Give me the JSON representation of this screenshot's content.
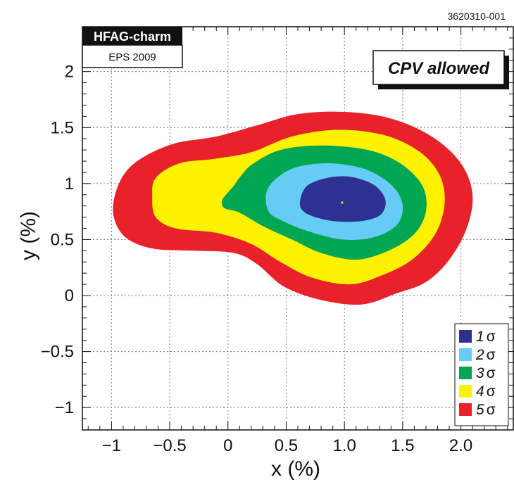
{
  "figure_id": "3620310-001",
  "badge": {
    "title": "HFAG-charm",
    "subtitle": "EPS 2009"
  },
  "annotation": "CPV allowed",
  "chart_data": {
    "type": "contour",
    "xlabel": "x (%)",
    "ylabel": "y (%)",
    "xlim": [
      -1.25,
      2.45
    ],
    "ylim": [
      -1.2,
      2.4
    ],
    "x_ticks": [
      -1,
      -0.5,
      0,
      0.5,
      1.0,
      1.5,
      2.0
    ],
    "x_tick_labels": [
      "−1",
      "−0.5",
      "0",
      "0.5",
      "1.0",
      "1.5",
      "2.0"
    ],
    "y_ticks": [
      -1,
      -0.5,
      0,
      0.5,
      1,
      1.5,
      2
    ],
    "y_tick_labels": [
      "−1",
      "−0.5",
      "0",
      "0.5",
      "1",
      "1.5",
      "2"
    ],
    "grid": true,
    "legend_position": "bottom-right",
    "best_fit": {
      "x": 0.98,
      "y": 0.83
    },
    "contours": [
      {
        "label": "5σ",
        "sigma": "5",
        "color": "#e8212b",
        "points": [
          [
            -0.88,
            1.1
          ],
          [
            -0.72,
            1.24
          ],
          [
            -0.45,
            1.36
          ],
          [
            -0.1,
            1.42
          ],
          [
            0.25,
            1.52
          ],
          [
            0.6,
            1.62
          ],
          [
            1.0,
            1.64
          ],
          [
            1.4,
            1.58
          ],
          [
            1.75,
            1.42
          ],
          [
            2.0,
            1.18
          ],
          [
            2.1,
            0.9
          ],
          [
            2.05,
            0.6
          ],
          [
            1.9,
            0.32
          ],
          [
            1.7,
            0.12
          ],
          [
            1.45,
            0.02
          ],
          [
            1.15,
            -0.08
          ],
          [
            0.8,
            -0.04
          ],
          [
            0.48,
            0.08
          ],
          [
            0.25,
            0.28
          ],
          [
            0.05,
            0.38
          ],
          [
            -0.3,
            0.4
          ],
          [
            -0.65,
            0.42
          ],
          [
            -0.88,
            0.52
          ],
          [
            -0.98,
            0.7
          ],
          [
            -0.97,
            0.9
          ]
        ]
      },
      {
        "label": "4σ",
        "sigma": "4",
        "color": "#fff200",
        "points": [
          [
            -0.62,
            1.05
          ],
          [
            -0.42,
            1.18
          ],
          [
            -0.12,
            1.22
          ],
          [
            0.2,
            1.28
          ],
          [
            0.55,
            1.42
          ],
          [
            0.95,
            1.48
          ],
          [
            1.35,
            1.43
          ],
          [
            1.65,
            1.28
          ],
          [
            1.82,
            1.07
          ],
          [
            1.86,
            0.82
          ],
          [
            1.78,
            0.55
          ],
          [
            1.58,
            0.32
          ],
          [
            1.32,
            0.18
          ],
          [
            1.05,
            0.1
          ],
          [
            0.72,
            0.16
          ],
          [
            0.45,
            0.3
          ],
          [
            0.2,
            0.46
          ],
          [
            -0.1,
            0.56
          ],
          [
            -0.45,
            0.6
          ],
          [
            -0.62,
            0.7
          ],
          [
            -0.65,
            0.88
          ]
        ]
      },
      {
        "label": "3σ",
        "sigma": "3",
        "color": "#00a651",
        "points": [
          [
            0.05,
            0.98
          ],
          [
            0.12,
            1.08
          ],
          [
            0.22,
            1.18
          ],
          [
            0.45,
            1.3
          ],
          [
            0.8,
            1.34
          ],
          [
            1.2,
            1.3
          ],
          [
            1.48,
            1.18
          ],
          [
            1.67,
            0.98
          ],
          [
            1.7,
            0.75
          ],
          [
            1.6,
            0.55
          ],
          [
            1.38,
            0.4
          ],
          [
            1.1,
            0.32
          ],
          [
            0.8,
            0.38
          ],
          [
            0.55,
            0.5
          ],
          [
            0.3,
            0.62
          ],
          [
            0.1,
            0.74
          ],
          [
            -0.03,
            0.78
          ],
          [
            -0.05,
            0.85
          ],
          [
            0.0,
            0.92
          ]
        ]
      },
      {
        "label": "2σ",
        "sigma": "2",
        "color": "#66ccf5",
        "points": [
          [
            0.33,
            0.92
          ],
          [
            0.42,
            1.05
          ],
          [
            0.6,
            1.15
          ],
          [
            0.9,
            1.18
          ],
          [
            1.2,
            1.12
          ],
          [
            1.42,
            0.97
          ],
          [
            1.5,
            0.8
          ],
          [
            1.45,
            0.63
          ],
          [
            1.25,
            0.52
          ],
          [
            0.98,
            0.5
          ],
          [
            0.7,
            0.57
          ],
          [
            0.48,
            0.66
          ],
          [
            0.35,
            0.75
          ]
        ]
      },
      {
        "label": "1σ",
        "sigma": "1",
        "color": "#2e3192",
        "points": [
          [
            0.62,
            0.85
          ],
          [
            0.68,
            0.98
          ],
          [
            0.85,
            1.05
          ],
          [
            1.05,
            1.06
          ],
          [
            1.25,
            0.99
          ],
          [
            1.35,
            0.86
          ],
          [
            1.32,
            0.73
          ],
          [
            1.18,
            0.67
          ],
          [
            0.95,
            0.66
          ],
          [
            0.75,
            0.7
          ],
          [
            0.64,
            0.76
          ]
        ]
      }
    ],
    "legend": [
      {
        "sigma": "1",
        "symbol": "σ",
        "color": "#2e3192"
      },
      {
        "sigma": "2",
        "symbol": "σ",
        "color": "#66ccf5"
      },
      {
        "sigma": "3",
        "symbol": "σ",
        "color": "#00a651"
      },
      {
        "sigma": "4",
        "symbol": "σ",
        "color": "#fff200"
      },
      {
        "sigma": "5",
        "symbol": "σ",
        "color": "#e8212b"
      }
    ]
  }
}
